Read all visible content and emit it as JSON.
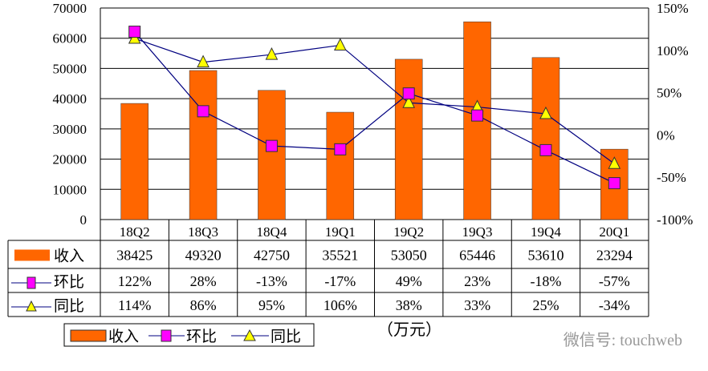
{
  "chart_data": {
    "type": "bar",
    "categories": [
      "18Q2",
      "18Q3",
      "18Q4",
      "19Q1",
      "19Q2",
      "19Q3",
      "19Q4",
      "20Q1"
    ],
    "series": [
      {
        "name": "收入",
        "type": "bar",
        "axis": "left",
        "values": [
          38425,
          49320,
          42750,
          35521,
          53050,
          65446,
          53610,
          23294
        ],
        "labels": [
          "38425",
          "49320",
          "42750",
          "35521",
          "53050",
          "65446",
          "53610",
          "23294"
        ],
        "color": "#FF6600"
      },
      {
        "name": "环比",
        "type": "line",
        "axis": "right",
        "marker": "square",
        "values": [
          122,
          28,
          -13,
          -17,
          49,
          23,
          -18,
          -57
        ],
        "labels": [
          "122%",
          "28%",
          "-13%",
          "-17%",
          "49%",
          "23%",
          "-18%",
          "-57%"
        ],
        "color": "#FF00FF"
      },
      {
        "name": "同比",
        "type": "line",
        "axis": "right",
        "marker": "triangle",
        "values": [
          114,
          86,
          95,
          106,
          38,
          33,
          25,
          -34
        ],
        "labels": [
          "114%",
          "86%",
          "95%",
          "106%",
          "38%",
          "33%",
          "25%",
          "-34%"
        ],
        "color": "#FFFF00"
      }
    ],
    "left_axis": {
      "ylim": [
        0,
        70000
      ],
      "ticks": [
        "0",
        "10000",
        "20000",
        "30000",
        "40000",
        "50000",
        "60000",
        "70000"
      ]
    },
    "right_axis": {
      "ylim": [
        -100,
        150
      ],
      "ticks": [
        "-100%",
        "-50%",
        "0%",
        "50%",
        "100%",
        "150%"
      ]
    },
    "unit_label": "（万元）",
    "legend_position": "bottom-left",
    "grid": true
  },
  "watermark": "微信号: touchweb"
}
